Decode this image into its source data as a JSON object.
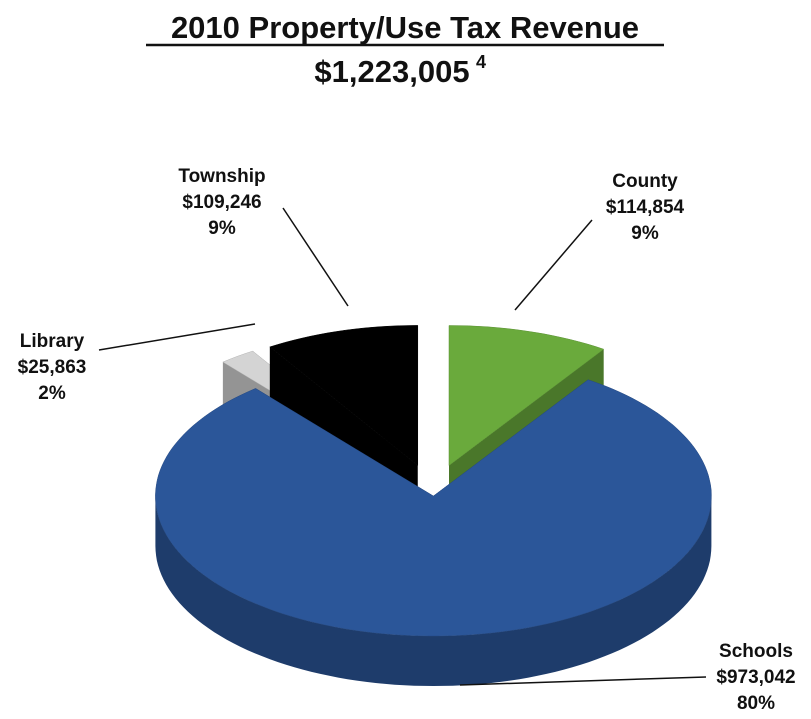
{
  "chart_data": {
    "type": "pie3d",
    "title": "2010 Property/Use Tax Revenue",
    "subtitle": "$1,223,005",
    "subtitle_footnote": "4",
    "categories": [
      "County",
      "Schools",
      "Library",
      "Township"
    ],
    "values": [
      114854,
      973042,
      25863,
      109246
    ],
    "value_labels": [
      "$114,854",
      "$973,042",
      "$25,863",
      "$109,246"
    ],
    "percent_labels": [
      "9%",
      "80%",
      "2%",
      "9%"
    ],
    "colors": [
      "#6aaa3c",
      "#2b5699",
      "#d4d4d4",
      "#000000"
    ]
  }
}
